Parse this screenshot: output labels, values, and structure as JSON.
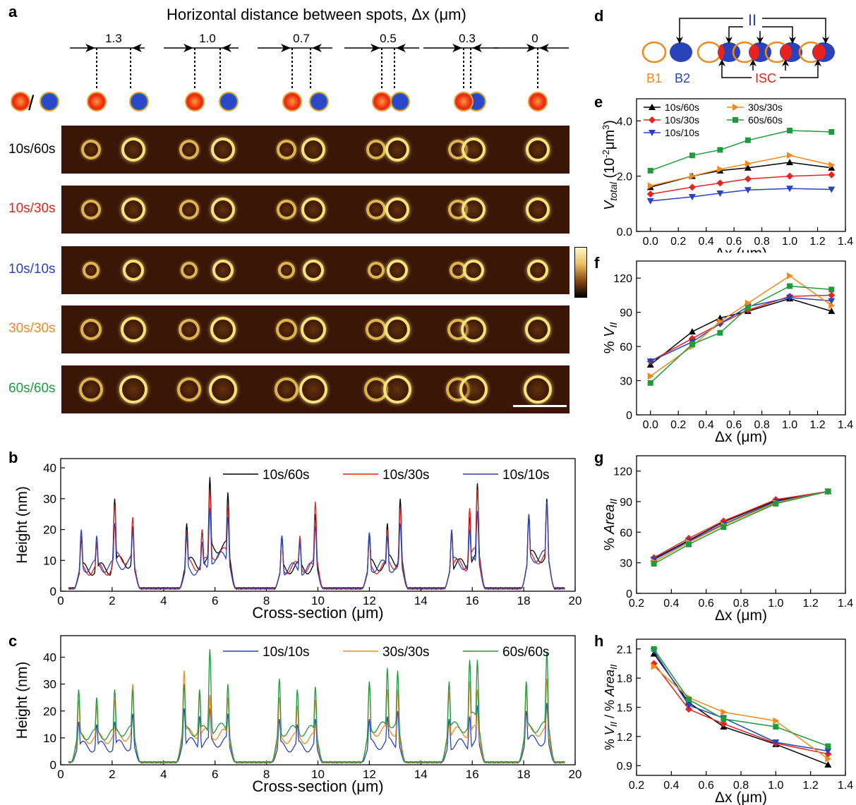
{
  "panel_labels": {
    "a": "a",
    "b": "b",
    "c": "c",
    "d": "d",
    "e": "e",
    "f": "f",
    "g": "g",
    "h": "h"
  },
  "panel_a": {
    "header": "Horizontal distance between spots, Δx (μm)",
    "distances": [
      "1.3",
      "1.0",
      "0.7",
      "0.5",
      "0.3",
      "0"
    ],
    "legend_slash": "/",
    "rows": [
      {
        "label": "10s/60s",
        "color": "#000000"
      },
      {
        "label": "10s/30s",
        "color": "#e8231f"
      },
      {
        "label": "10s/10s",
        "color": "#2a43b8"
      },
      {
        "label": "30s/30s",
        "color": "#f08a1c"
      },
      {
        "label": "60s/60s",
        "color": "#1f9a3c"
      }
    ],
    "colors": {
      "spot_red": "#f02a18",
      "spot_blue": "#2b46c8",
      "spot_rim": "#e8a33a",
      "afm_bg": "#3b1606"
    }
  },
  "panel_d": {
    "label_II": "II",
    "label_B1": "B1",
    "label_B2": "B2",
    "label_ISC": "ISC",
    "colors": {
      "II": "#2a43b8",
      "B1": "#f08a1c",
      "B2": "#2a43b8",
      "ISC": "#e8231f"
    }
  },
  "chart_data": [
    {
      "id": "b",
      "type": "line",
      "xlabel": "Cross-section (μm)",
      "ylabel": "Height (nm)",
      "xlim": [
        0,
        20
      ],
      "ylim": [
        0,
        43
      ],
      "xticks": [
        0,
        2,
        4,
        6,
        8,
        10,
        12,
        14,
        16,
        18,
        20
      ],
      "yticks": [
        0,
        10,
        20,
        30,
        40
      ],
      "series": [
        {
          "name": "10s/60s",
          "color": "#000000",
          "peaks": [
            [
              0.8,
              17
            ],
            [
              1.4,
              16
            ],
            [
              2.1,
              30
            ],
            [
              2.8,
              21
            ],
            [
              4.9,
              22
            ],
            [
              5.5,
              20
            ],
            [
              5.8,
              37
            ],
            [
              6.5,
              32
            ],
            [
              8.6,
              18
            ],
            [
              9.3,
              17
            ],
            [
              9.9,
              25
            ],
            [
              12.0,
              19
            ],
            [
              12.7,
              22
            ],
            [
              13.2,
              30
            ],
            [
              15.2,
              19
            ],
            [
              15.9,
              24
            ],
            [
              16.2,
              35
            ],
            [
              18.2,
              25
            ],
            [
              18.9,
              30
            ]
          ]
        },
        {
          "name": "10s/30s",
          "color": "#e8231f",
          "peaks": [
            [
              0.8,
              18
            ],
            [
              1.4,
              16
            ],
            [
              2.1,
              28
            ],
            [
              2.8,
              24
            ],
            [
              4.9,
              19
            ],
            [
              5.5,
              20
            ],
            [
              5.8,
              33
            ],
            [
              6.5,
              27
            ],
            [
              8.6,
              17
            ],
            [
              9.3,
              18
            ],
            [
              9.9,
              29
            ],
            [
              12.0,
              17
            ],
            [
              12.7,
              20
            ],
            [
              13.2,
              27
            ],
            [
              15.2,
              19
            ],
            [
              15.9,
              27
            ],
            [
              16.2,
              33
            ],
            [
              18.2,
              24
            ],
            [
              18.9,
              29
            ]
          ]
        },
        {
          "name": "10s/10s",
          "color": "#2a43b8",
          "peaks": [
            [
              0.8,
              20
            ],
            [
              1.4,
              18
            ],
            [
              2.1,
              22
            ],
            [
              2.8,
              20
            ],
            [
              4.9,
              18
            ],
            [
              5.5,
              16
            ],
            [
              5.8,
              27
            ],
            [
              6.5,
              24
            ],
            [
              8.6,
              18
            ],
            [
              9.3,
              16
            ],
            [
              9.9,
              21
            ],
            [
              12.0,
              19
            ],
            [
              12.7,
              18
            ],
            [
              13.2,
              22
            ],
            [
              15.2,
              20
            ],
            [
              15.9,
              20
            ],
            [
              16.2,
              26
            ],
            [
              18.2,
              25
            ],
            [
              18.9,
              29
            ]
          ]
        }
      ]
    },
    {
      "id": "c",
      "type": "line",
      "xlabel": "Cross-section (μm)",
      "ylabel": "Height (nm)",
      "xlim": [
        0,
        20
      ],
      "ylim": [
        0,
        48
      ],
      "xticks": [
        0,
        2,
        4,
        6,
        8,
        10,
        12,
        14,
        16,
        18,
        20
      ],
      "yticks": [
        0,
        10,
        20,
        30,
        40
      ],
      "series": [
        {
          "name": "10s/10s",
          "color": "#2a43b8",
          "peaks": [
            [
              0.7,
              16
            ],
            [
              1.4,
              15
            ],
            [
              2.1,
              16
            ],
            [
              2.8,
              19
            ],
            [
              4.8,
              21
            ],
            [
              5.4,
              18
            ],
            [
              5.8,
              21
            ],
            [
              6.5,
              19
            ],
            [
              8.5,
              17
            ],
            [
              9.2,
              15
            ],
            [
              9.9,
              17
            ],
            [
              12.0,
              17
            ],
            [
              12.7,
              18
            ],
            [
              13.1,
              20
            ],
            [
              15.1,
              17
            ],
            [
              15.9,
              18
            ],
            [
              16.2,
              22
            ],
            [
              18.1,
              20
            ],
            [
              18.9,
              23
            ]
          ]
        },
        {
          "name": "30s/30s",
          "color": "#f08a1c",
          "peaks": [
            [
              0.7,
              24
            ],
            [
              1.4,
              22
            ],
            [
              2.1,
              24
            ],
            [
              2.8,
              30
            ],
            [
              4.8,
              35
            ],
            [
              5.4,
              26
            ],
            [
              5.8,
              26
            ],
            [
              6.5,
              25
            ],
            [
              8.5,
              25
            ],
            [
              9.2,
              22
            ],
            [
              9.9,
              24
            ],
            [
              12.0,
              30
            ],
            [
              12.7,
              28
            ],
            [
              13.1,
              28
            ],
            [
              15.1,
              27
            ],
            [
              15.9,
              31
            ],
            [
              16.2,
              28
            ],
            [
              18.1,
              28
            ],
            [
              18.9,
              32
            ]
          ]
        },
        {
          "name": "60s/60s",
          "color": "#1f9a3c",
          "peaks": [
            [
              0.7,
              28
            ],
            [
              1.4,
              25
            ],
            [
              2.1,
              28
            ],
            [
              2.8,
              28
            ],
            [
              4.8,
              30
            ],
            [
              5.4,
              28
            ],
            [
              5.8,
              43
            ],
            [
              6.5,
              30
            ],
            [
              8.5,
              32
            ],
            [
              9.2,
              28
            ],
            [
              9.9,
              29
            ],
            [
              12.0,
              31
            ],
            [
              12.7,
              36
            ],
            [
              13.1,
              35
            ],
            [
              15.1,
              31
            ],
            [
              15.9,
              39
            ],
            [
              16.2,
              39
            ],
            [
              18.1,
              31
            ],
            [
              18.9,
              42
            ]
          ]
        }
      ]
    },
    {
      "id": "e",
      "type": "line",
      "xlabel": "Δx (μm)",
      "ylabel": "V_total (10⁻² μm³)",
      "xlim": [
        -0.1,
        1.4
      ],
      "ylim": [
        0,
        4.8
      ],
      "xticks": [
        0.0,
        0.2,
        0.4,
        0.6,
        0.8,
        1.0,
        1.2,
        1.4
      ],
      "yticks": [
        0.0,
        2.0,
        4.0
      ],
      "x": [
        0.0,
        0.3,
        0.5,
        0.7,
        1.0,
        1.3
      ],
      "series": [
        {
          "name": "10s/60s",
          "color": "#000000",
          "marker": "triangle-up",
          "values": [
            1.6,
            2.0,
            2.2,
            2.3,
            2.5,
            2.3
          ]
        },
        {
          "name": "10s/30s",
          "color": "#e8231f",
          "marker": "diamond",
          "values": [
            1.35,
            1.6,
            1.75,
            1.9,
            2.0,
            2.05
          ]
        },
        {
          "name": "10s/10s",
          "color": "#2a43b8",
          "marker": "triangle-down",
          "values": [
            1.1,
            1.25,
            1.38,
            1.5,
            1.55,
            1.52
          ]
        },
        {
          "name": "30s/30s",
          "color": "#f08a1c",
          "marker": "triangle-right",
          "values": [
            1.65,
            2.0,
            2.25,
            2.45,
            2.75,
            2.4
          ]
        },
        {
          "name": "60s/60s",
          "color": "#1f9a3c",
          "marker": "square",
          "values": [
            2.2,
            2.75,
            2.95,
            3.3,
            3.65,
            3.6
          ]
        }
      ],
      "legend": "top-left"
    },
    {
      "id": "f",
      "type": "line",
      "xlabel": "Δx (μm)",
      "ylabel": "% V_II",
      "xlim": [
        -0.1,
        1.4
      ],
      "ylim": [
        0,
        135
      ],
      "xticks": [
        0.0,
        0.2,
        0.4,
        0.6,
        0.8,
        1.0,
        1.2,
        1.4
      ],
      "yticks": [
        0,
        30,
        60,
        90,
        120
      ],
      "x": [
        0.0,
        0.3,
        0.5,
        0.7,
        1.0,
        1.3
      ],
      "series": [
        {
          "color": "#000000",
          "marker": "triangle-up",
          "values": [
            44,
            73,
            85,
            91,
            102,
            91
          ]
        },
        {
          "color": "#e8231f",
          "marker": "diamond",
          "values": [
            47,
            67,
            80,
            92,
            104,
            105
          ]
        },
        {
          "color": "#2a43b8",
          "marker": "triangle-down",
          "values": [
            47,
            64,
            80,
            95,
            103,
            100
          ]
        },
        {
          "color": "#f08a1c",
          "marker": "triangle-right",
          "values": [
            34,
            60,
            82,
            98,
            122,
            96
          ]
        },
        {
          "color": "#1f9a3c",
          "marker": "square",
          "values": [
            28,
            62,
            72,
            94,
            113,
            110
          ]
        }
      ]
    },
    {
      "id": "g",
      "type": "line",
      "xlabel": "Δx (μm)",
      "ylabel": "% Area_II",
      "xlim": [
        0.2,
        1.4
      ],
      "ylim": [
        0,
        135
      ],
      "xticks": [
        0.2,
        0.4,
        0.6,
        0.8,
        1.0,
        1.2,
        1.4
      ],
      "yticks": [
        0,
        30,
        60,
        90,
        120
      ],
      "x": [
        0.3,
        0.5,
        0.7,
        1.0,
        1.3
      ],
      "series": [
        {
          "color": "#000000",
          "marker": "triangle-up",
          "values": [
            34,
            52,
            70,
            91,
            100
          ]
        },
        {
          "color": "#e8231f",
          "marker": "diamond",
          "values": [
            35,
            54,
            71,
            92,
            100
          ]
        },
        {
          "color": "#2a43b8",
          "marker": "triangle-down",
          "values": [
            33,
            51,
            68,
            90,
            100
          ]
        },
        {
          "color": "#f08a1c",
          "marker": "triangle-right",
          "values": [
            31,
            50,
            67,
            89,
            100
          ]
        },
        {
          "color": "#1f9a3c",
          "marker": "square",
          "values": [
            29,
            48,
            65,
            88,
            100
          ]
        }
      ]
    },
    {
      "id": "h",
      "type": "line",
      "xlabel": "Δx (μm)",
      "ylabel": "% V_II / % Area_II",
      "xlim": [
        0.2,
        1.4
      ],
      "ylim": [
        0.8,
        2.2
      ],
      "xticks": [
        0.2,
        0.4,
        0.6,
        0.8,
        1.0,
        1.2,
        1.4
      ],
      "yticks": [
        0.9,
        1.2,
        1.5,
        1.8,
        2.1
      ],
      "x": [
        0.3,
        0.5,
        0.7,
        1.0,
        1.3
      ],
      "series": [
        {
          "color": "#000000",
          "marker": "triangle-up",
          "values": [
            2.05,
            1.55,
            1.3,
            1.12,
            0.91
          ]
        },
        {
          "color": "#e8231f",
          "marker": "diamond",
          "values": [
            1.95,
            1.48,
            1.33,
            1.13,
            1.02
          ]
        },
        {
          "color": "#2a43b8",
          "marker": "triangle-down",
          "values": [
            2.08,
            1.52,
            1.39,
            1.14,
            1.05
          ]
        },
        {
          "color": "#f08a1c",
          "marker": "triangle-right",
          "values": [
            1.92,
            1.6,
            1.45,
            1.36,
            0.97
          ]
        },
        {
          "color": "#1f9a3c",
          "marker": "square",
          "values": [
            2.1,
            1.58,
            1.38,
            1.3,
            1.1
          ]
        }
      ]
    }
  ]
}
